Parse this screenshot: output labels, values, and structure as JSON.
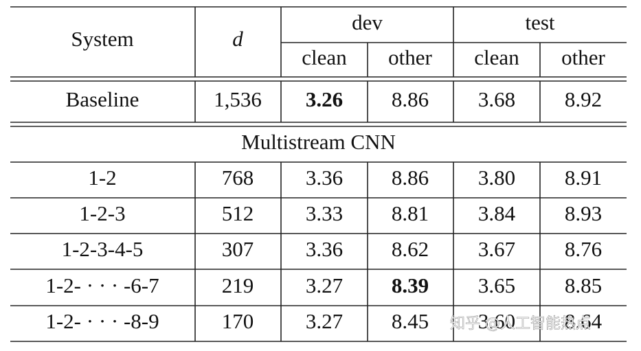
{
  "table": {
    "header": {
      "system": "System",
      "d": "d",
      "groups": [
        "dev",
        "test"
      ],
      "sub": [
        "clean",
        "other",
        "clean",
        "other"
      ]
    },
    "baseline": [
      "Baseline",
      "1,536",
      "3.26",
      "8.86",
      "3.68",
      "8.92"
    ],
    "section": "Multistream CNN",
    "rows": [
      [
        "1-2",
        "768",
        "3.36",
        "8.86",
        "3.80",
        "8.91"
      ],
      [
        "1-2-3",
        "512",
        "3.33",
        "8.81",
        "3.84",
        "8.93"
      ],
      [
        "1-2-3-4-5",
        "307",
        "3.36",
        "8.62",
        "3.67",
        "8.76"
      ],
      [
        "1-2- · · · -6-7",
        "219",
        "3.27",
        "8.39",
        "3.65",
        "8.85"
      ],
      [
        "1-2- · · · -8-9",
        "170",
        "3.27",
        "8.45",
        "3.60",
        "8.64"
      ]
    ]
  },
  "watermark": "知乎 @人工智能热点"
}
